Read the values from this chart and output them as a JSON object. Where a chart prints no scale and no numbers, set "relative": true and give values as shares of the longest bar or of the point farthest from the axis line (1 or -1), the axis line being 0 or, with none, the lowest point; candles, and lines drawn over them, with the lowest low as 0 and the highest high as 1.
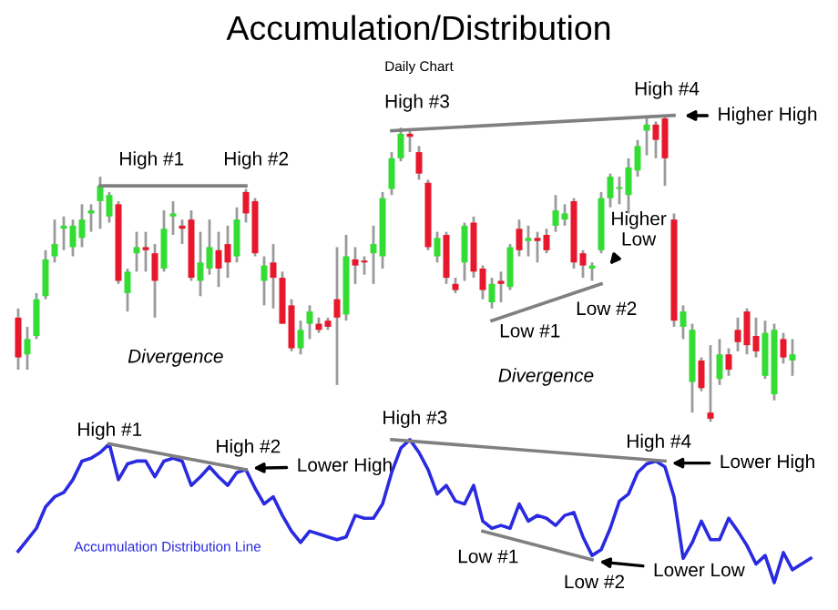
{
  "chart_data": [
    {
      "type": "candlestick",
      "title": "Accumulation/Distribution",
      "subtitle": "Daily Chart",
      "relative": true,
      "categories": [
        null,
        null,
        null,
        null,
        null,
        null,
        null,
        null,
        null,
        null,
        null,
        null,
        null,
        null,
        null,
        null,
        null,
        null,
        null,
        null,
        null,
        null,
        null,
        null,
        null,
        null,
        null,
        null,
        null,
        null,
        null,
        null,
        null,
        null,
        null,
        null,
        null,
        null,
        null,
        null,
        null,
        null,
        null,
        null,
        null,
        null,
        null,
        null,
        null,
        null,
        null,
        null,
        null,
        null,
        null,
        null,
        null,
        null,
        null,
        null,
        null,
        null,
        null,
        null,
        null,
        null,
        null,
        null,
        null,
        null,
        null,
        null,
        null,
        null,
        null,
        null,
        null,
        null,
        null,
        null,
        null,
        null,
        null,
        null,
        null,
        null
      ],
      "ohlc": [
        [
          0.34,
          0.37,
          0.17,
          0.21
        ],
        [
          0.22,
          0.31,
          0.17,
          0.27
        ],
        [
          0.28,
          0.42,
          0.27,
          0.4
        ],
        [
          0.41,
          0.56,
          0.4,
          0.53
        ],
        [
          0.54,
          0.66,
          0.52,
          0.58
        ],
        [
          0.63,
          0.67,
          0.56,
          0.64
        ],
        [
          0.57,
          0.66,
          0.54,
          0.64
        ],
        [
          0.6,
          0.71,
          0.57,
          0.66
        ],
        [
          0.68,
          0.71,
          0.62,
          0.69
        ],
        [
          0.72,
          0.8,
          0.63,
          0.77
        ],
        [
          0.67,
          0.75,
          0.65,
          0.74
        ],
        [
          0.71,
          0.72,
          0.45,
          0.46
        ],
        [
          0.42,
          0.5,
          0.36,
          0.49
        ],
        [
          0.55,
          0.62,
          0.49,
          0.57
        ],
        [
          0.57,
          0.62,
          0.49,
          0.56
        ],
        [
          0.55,
          0.58,
          0.34,
          0.46
        ],
        [
          0.5,
          0.69,
          0.49,
          0.63
        ],
        [
          0.67,
          0.72,
          0.61,
          0.68
        ],
        [
          0.64,
          0.66,
          0.58,
          0.63
        ],
        [
          0.66,
          0.69,
          0.46,
          0.47
        ],
        [
          0.46,
          0.62,
          0.41,
          0.52
        ],
        [
          0.5,
          0.66,
          0.48,
          0.57
        ],
        [
          0.56,
          0.62,
          0.44,
          0.5
        ],
        [
          0.58,
          0.64,
          0.47,
          0.52
        ],
        [
          0.54,
          0.7,
          0.52,
          0.66
        ],
        [
          0.75,
          0.76,
          0.65,
          0.68
        ],
        [
          0.72,
          0.73,
          0.54,
          0.55
        ],
        [
          0.46,
          0.54,
          0.38,
          0.51
        ],
        [
          0.52,
          0.58,
          0.37,
          0.47
        ],
        [
          0.47,
          0.49,
          0.32,
          0.32
        ],
        [
          0.38,
          0.4,
          0.23,
          0.24
        ],
        [
          0.24,
          0.33,
          0.22,
          0.3
        ],
        [
          0.32,
          0.38,
          0.27,
          0.36
        ],
        [
          0.32,
          0.34,
          0.29,
          0.3
        ],
        [
          0.33,
          0.34,
          0.3,
          0.31
        ],
        [
          0.4,
          0.57,
          0.12,
          0.34
        ],
        [
          0.35,
          0.61,
          0.33,
          0.54
        ],
        [
          0.53,
          0.57,
          0.45,
          0.51
        ],
        [
          0.52,
          0.54,
          0.48,
          0.52
        ],
        [
          0.55,
          0.64,
          0.45,
          0.58
        ],
        [
          0.54,
          0.75,
          0.5,
          0.73
        ],
        [
          0.76,
          0.88,
          0.74,
          0.86
        ],
        [
          0.86,
          0.96,
          0.85,
          0.94
        ],
        [
          0.94,
          0.95,
          0.88,
          0.93
        ],
        [
          0.88,
          0.9,
          0.79,
          0.81
        ],
        [
          0.78,
          0.79,
          0.56,
          0.57
        ],
        [
          0.54,
          0.62,
          0.52,
          0.6
        ],
        [
          0.61,
          0.62,
          0.45,
          0.47
        ],
        [
          0.45,
          0.47,
          0.42,
          0.43
        ],
        [
          0.52,
          0.65,
          0.46,
          0.64
        ],
        [
          0.65,
          0.67,
          0.47,
          0.49
        ],
        [
          0.5,
          0.51,
          0.4,
          0.43
        ],
        [
          0.39,
          0.47,
          0.37,
          0.45
        ],
        [
          0.46,
          0.49,
          0.39,
          0.45
        ],
        [
          0.44,
          0.58,
          0.43,
          0.57
        ],
        [
          0.63,
          0.66,
          0.54,
          0.56
        ],
        [
          0.59,
          0.64,
          0.54,
          0.6
        ],
        [
          0.6,
          0.62,
          0.52,
          0.59
        ],
        [
          0.61,
          0.63,
          0.55,
          0.56
        ],
        [
          0.64,
          0.74,
          0.62,
          0.69
        ],
        [
          0.66,
          0.71,
          0.64,
          0.68
        ],
        [
          0.72,
          0.73,
          0.5,
          0.52
        ],
        [
          0.55,
          0.56,
          0.47,
          0.51
        ],
        [
          0.5,
          0.52,
          0.46,
          0.51
        ],
        [
          0.56,
          0.75,
          0.55,
          0.73
        ],
        [
          0.73,
          0.81,
          0.7,
          0.8
        ],
        [
          0.76,
          0.8,
          0.71,
          0.76
        ],
        [
          0.74,
          0.86,
          0.68,
          0.83
        ],
        [
          0.82,
          0.92,
          0.8,
          0.9
        ],
        [
          0.95,
          0.99,
          0.87,
          0.97
        ],
        [
          0.97,
          0.98,
          0.86,
          0.92
        ],
        [
          0.99,
          1.0,
          0.77,
          0.86
        ],
        [
          0.66,
          0.68,
          0.31,
          0.33
        ],
        [
          0.31,
          0.38,
          0.27,
          0.36
        ],
        [
          0.13,
          0.32,
          0.03,
          0.3
        ],
        [
          0.2,
          0.21,
          0.1,
          0.11
        ],
        [
          0.03,
          0.25,
          0.0,
          0.01
        ],
        [
          0.14,
          0.27,
          0.12,
          0.22
        ],
        [
          0.22,
          0.24,
          0.15,
          0.17
        ],
        [
          0.3,
          0.34,
          0.23,
          0.26
        ],
        [
          0.36,
          0.37,
          0.22,
          0.25
        ],
        [
          0.28,
          0.34,
          0.21,
          0.23
        ],
        [
          0.15,
          0.33,
          0.14,
          0.29
        ],
        [
          0.09,
          0.32,
          0.07,
          0.3
        ],
        [
          0.27,
          0.29,
          0.19,
          0.21
        ],
        [
          0.2,
          0.27,
          0.15,
          0.22
        ]
      ],
      "colors": [
        "#e8172b",
        "#33dd33",
        "#33dd33",
        "#33dd33",
        "#33dd33",
        "#33dd33",
        "#33dd33",
        "#33dd33",
        "#33dd33",
        "#33dd33",
        "#33dd33",
        "#e8172b",
        "#33dd33",
        "#33dd33",
        "#e8172b",
        "#e8172b",
        "#33dd33",
        "#33dd33",
        "#e8172b",
        "#e8172b",
        "#33dd33",
        "#33dd33",
        "#e8172b",
        "#e8172b",
        "#33dd33",
        "#e8172b",
        "#e8172b",
        "#33dd33",
        "#e8172b",
        "#e8172b",
        "#e8172b",
        "#33dd33",
        "#33dd33",
        "#e8172b",
        "#e8172b",
        "#e8172b",
        "#33dd33",
        "#e8172b",
        "#e8172b",
        "#33dd33",
        "#33dd33",
        "#33dd33",
        "#33dd33",
        "#e8172b",
        "#e8172b",
        "#e8172b",
        "#33dd33",
        "#e8172b",
        "#e8172b",
        "#33dd33",
        "#e8172b",
        "#e8172b",
        "#33dd33",
        "#e8172b",
        "#33dd33",
        "#e8172b",
        "#33dd33",
        "#e8172b",
        "#e8172b",
        "#33dd33",
        "#33dd33",
        "#e8172b",
        "#e8172b",
        "#33dd33",
        "#33dd33",
        "#33dd33",
        "#33dd33",
        "#33dd33",
        "#33dd33",
        "#33dd33",
        "#e8172b",
        "#e8172b",
        "#e8172b",
        "#33dd33",
        "#33dd33",
        "#e8172b",
        "#e8172b",
        "#33dd33",
        "#e8172b",
        "#e8172b",
        "#e8172b",
        "#e8172b",
        "#33dd33",
        "#33dd33",
        "#e8172b",
        "#33dd33"
      ],
      "series": [
        {
          "type": "line",
          "color": "#808080",
          "values": [
            null,
            null,
            null,
            null,
            null,
            null,
            null,
            null,
            null,
            0.77,
            null,
            null,
            null,
            null,
            null,
            null,
            null,
            null,
            null,
            null,
            null,
            null,
            null,
            null,
            null,
            0.77,
            null,
            null,
            null,
            null,
            null,
            null,
            null,
            null,
            null,
            null,
            null,
            null,
            null,
            null,
            null,
            null,
            null,
            null,
            null,
            null,
            null,
            null,
            null,
            null,
            null,
            null,
            null,
            null,
            null,
            null,
            null,
            null,
            null,
            null,
            null,
            null,
            null,
            null,
            null,
            null,
            null,
            null,
            null,
            null,
            null,
            null,
            null,
            null,
            null,
            null,
            null,
            null,
            null,
            null,
            null,
            null,
            null,
            null,
            null,
            null
          ]
        },
        {
          "type": "line",
          "color": "#808080",
          "values": [
            null,
            null,
            null,
            null,
            null,
            null,
            null,
            null,
            null,
            null,
            null,
            null,
            null,
            null,
            null,
            null,
            null,
            null,
            null,
            null,
            null,
            null,
            null,
            null,
            null,
            null,
            null,
            null,
            null,
            null,
            null,
            null,
            null,
            null,
            null,
            null,
            null,
            null,
            null,
            null,
            null,
            0.95,
            null,
            null,
            null,
            null,
            null,
            null,
            null,
            null,
            null,
            null,
            null,
            null,
            null,
            null,
            null,
            null,
            null,
            null,
            null,
            null,
            null,
            null,
            null,
            null,
            null,
            null,
            null,
            null,
            null,
            null,
            1.0,
            null,
            null,
            null,
            null,
            null,
            null,
            null,
            null,
            null,
            null,
            null,
            null,
            null
          ]
        },
        {
          "type": "line",
          "color": "#808080",
          "values": [
            null,
            null,
            null,
            null,
            null,
            null,
            null,
            null,
            null,
            null,
            null,
            null,
            null,
            null,
            null,
            null,
            null,
            null,
            null,
            null,
            null,
            null,
            null,
            null,
            null,
            null,
            null,
            null,
            null,
            null,
            null,
            null,
            null,
            null,
            null,
            null,
            null,
            null,
            null,
            null,
            null,
            null,
            null,
            null,
            null,
            null,
            null,
            null,
            null,
            null,
            null,
            null,
            0.33,
            null,
            null,
            null,
            null,
            null,
            null,
            null,
            null,
            null,
            null,
            null,
            0.45,
            null,
            null,
            null,
            null,
            null,
            null,
            null,
            null,
            null,
            null,
            null,
            null,
            null,
            null,
            null,
            null,
            null,
            null,
            null,
            null,
            null
          ]
        }
      ],
      "annotations": [
        "High #1",
        "High #2",
        "High #3",
        "High #4",
        "Higher High",
        "Higher\nLow",
        "Low #1",
        "Low #2",
        "Divergence",
        "Divergence"
      ]
    },
    {
      "type": "line",
      "relative": true,
      "categories": [
        null,
        null,
        null,
        null,
        null,
        null,
        null,
        null,
        null,
        null,
        null,
        null,
        null,
        null,
        null,
        null,
        null,
        null,
        null,
        null,
        null,
        null,
        null,
        null,
        null,
        null,
        null,
        null,
        null,
        null,
        null,
        null,
        null,
        null,
        null,
        null,
        null,
        null,
        null,
        null,
        null,
        null,
        null,
        null,
        null,
        null,
        null,
        null,
        null,
        null,
        null,
        null,
        null,
        null,
        null,
        null,
        null,
        null,
        null,
        null,
        null,
        null,
        null,
        null,
        null,
        null,
        null,
        null,
        null,
        null,
        null,
        null,
        null,
        null,
        null,
        null,
        null,
        null,
        null,
        null,
        null,
        null,
        null,
        null,
        null,
        null,
        null,
        null
      ],
      "series": [
        {
          "color": "#2a2ae0",
          "values": [
            0.22,
            0.3,
            0.38,
            0.53,
            0.6,
            0.63,
            0.72,
            0.85,
            0.87,
            0.91,
            0.97,
            0.72,
            0.83,
            0.85,
            0.85,
            0.74,
            0.85,
            0.87,
            0.85,
            0.68,
            0.74,
            0.81,
            0.74,
            0.68,
            0.77,
            0.79,
            0.66,
            0.55,
            0.6,
            0.47,
            0.36,
            0.28,
            0.36,
            0.34,
            0.32,
            0.3,
            0.32,
            0.47,
            0.45,
            0.45,
            0.55,
            0.77,
            0.94,
            1.0,
            0.91,
            0.79,
            0.62,
            0.68,
            0.57,
            0.55,
            0.68,
            0.43,
            0.38,
            0.4,
            0.38,
            0.55,
            0.43,
            0.47,
            0.45,
            0.4,
            0.47,
            0.49,
            0.32,
            0.19,
            0.23,
            0.38,
            0.57,
            0.62,
            0.77,
            0.83,
            0.85,
            0.81,
            0.6,
            0.17,
            0.28,
            0.43,
            0.3,
            0.3,
            0.45,
            0.36,
            0.26,
            0.13,
            0.19,
            0.0,
            0.21,
            0.09,
            0.13,
            0.17
          ]
        },
        {
          "type": "line",
          "color": "#808080",
          "values": [
            null,
            null,
            null,
            null,
            null,
            null,
            null,
            null,
            null,
            null,
            0.97,
            null,
            null,
            null,
            null,
            null,
            null,
            null,
            null,
            null,
            null,
            null,
            null,
            null,
            null,
            0.79,
            null,
            null,
            null,
            null,
            null,
            null,
            null,
            null,
            null,
            null,
            null,
            null,
            null,
            null,
            null,
            null,
            null,
            null,
            null,
            null,
            null,
            null,
            null,
            null,
            null,
            null,
            null,
            null,
            null,
            null,
            null,
            null,
            null,
            null,
            null,
            null,
            null,
            null,
            null,
            null,
            null,
            null,
            null,
            null,
            null,
            null,
            null,
            null,
            null,
            null,
            null,
            null,
            null,
            null,
            null,
            null,
            null,
            null,
            null,
            null,
            null,
            null
          ]
        },
        {
          "type": "line",
          "color": "#808080",
          "values": [
            null,
            null,
            null,
            null,
            null,
            null,
            null,
            null,
            null,
            null,
            null,
            null,
            null,
            null,
            null,
            null,
            null,
            null,
            null,
            null,
            null,
            null,
            null,
            null,
            null,
            null,
            null,
            null,
            null,
            null,
            null,
            null,
            null,
            null,
            null,
            null,
            null,
            null,
            null,
            null,
            null,
            1.0,
            null,
            null,
            null,
            null,
            null,
            null,
            null,
            null,
            null,
            null,
            null,
            null,
            null,
            null,
            null,
            null,
            null,
            null,
            null,
            null,
            null,
            null,
            null,
            null,
            null,
            null,
            null,
            null,
            null,
            0.85,
            null,
            null,
            null,
            null,
            null,
            null,
            null,
            null,
            null,
            null,
            null,
            null,
            null,
            null,
            null,
            null
          ]
        },
        {
          "type": "line",
          "color": "#808080",
          "values": [
            null,
            null,
            null,
            null,
            null,
            null,
            null,
            null,
            null,
            null,
            null,
            null,
            null,
            null,
            null,
            null,
            null,
            null,
            null,
            null,
            null,
            null,
            null,
            null,
            null,
            null,
            null,
            null,
            null,
            null,
            null,
            null,
            null,
            null,
            null,
            null,
            null,
            null,
            null,
            null,
            null,
            null,
            null,
            null,
            null,
            null,
            null,
            null,
            null,
            null,
            null,
            0.36,
            null,
            null,
            null,
            null,
            null,
            null,
            null,
            null,
            null,
            null,
            null,
            0.16,
            null,
            null,
            null,
            null,
            null,
            null,
            null,
            null,
            null,
            null,
            null,
            null,
            null,
            null,
            null,
            null,
            null,
            null,
            null,
            null,
            null,
            null,
            null,
            null
          ]
        }
      ],
      "annotations": [
        "High #1",
        "High #2",
        "Lower High",
        "High #3",
        "High #4",
        "Lower High",
        "Low #1",
        "Low #2",
        "Lower Low",
        "Accumulation Distribution Line"
      ]
    }
  ]
}
